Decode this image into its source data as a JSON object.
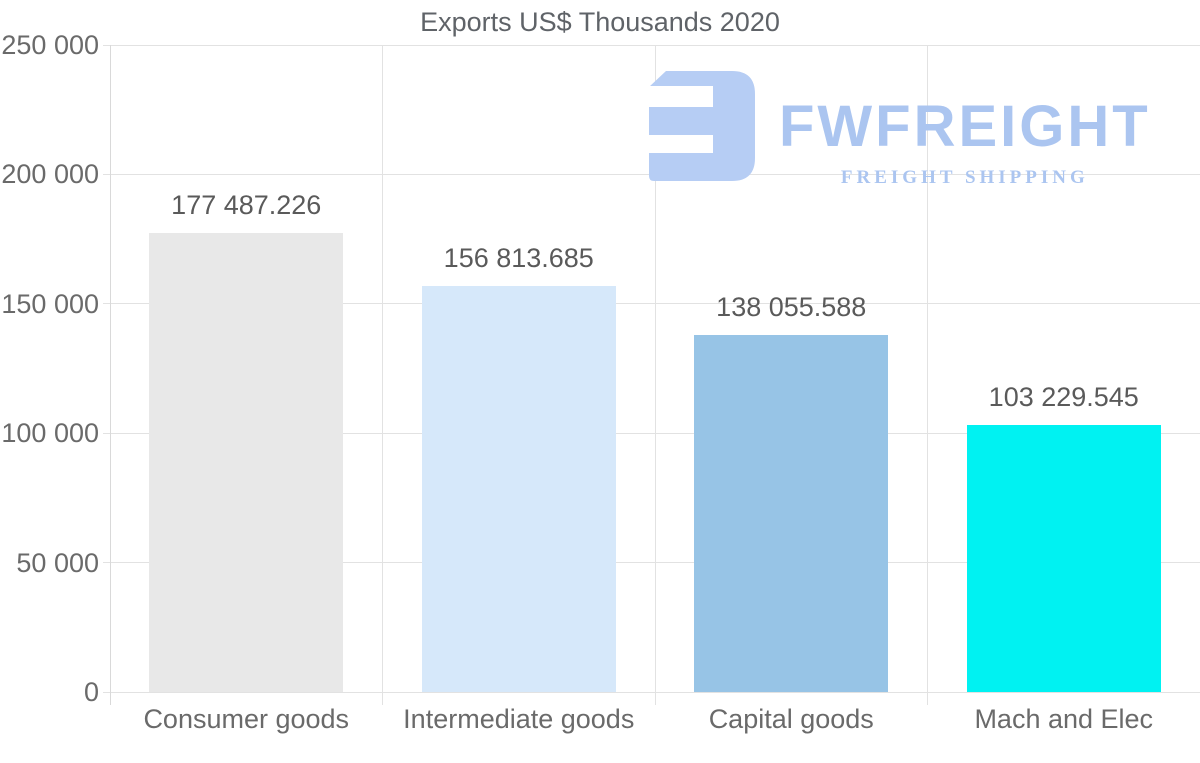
{
  "page": {
    "background": "#ffffff"
  },
  "chart_data": {
    "type": "bar",
    "title": "Exports US$ Thousands 2020",
    "categories": [
      "Consumer goods",
      "Intermediate goods",
      "Capital goods",
      "Mach and Elec"
    ],
    "values": [
      177487.226,
      156813.685,
      138055.588,
      103229.545
    ],
    "value_labels": [
      "177 487.226",
      "156 813.685",
      "138 055.588",
      "103 229.545"
    ],
    "bar_colors": [
      "#e8e8e8",
      "#d6e8fa",
      "#97c4e6",
      "#00f2f2"
    ],
    "ylim": [
      0,
      250000
    ],
    "ytick_labels": [
      "0",
      "50 000",
      "100 000",
      "150 000",
      "200 000",
      "250 000"
    ],
    "grid": "on",
    "legend": "none",
    "xlabel": "",
    "ylabel": "",
    "grid_color": "#e2e2e2",
    "axis_color": "#d9d9d9",
    "title_color": "#5f6368",
    "tick_label_color": "#6a6a6a",
    "value_label_color": "#5a5a5a"
  },
  "watermark": {
    "brand": "FWFREIGHT",
    "tagline": "FREIGHT SHIPPING",
    "text_color": "#abc5f0",
    "icon_color": "#b6cdf4"
  }
}
